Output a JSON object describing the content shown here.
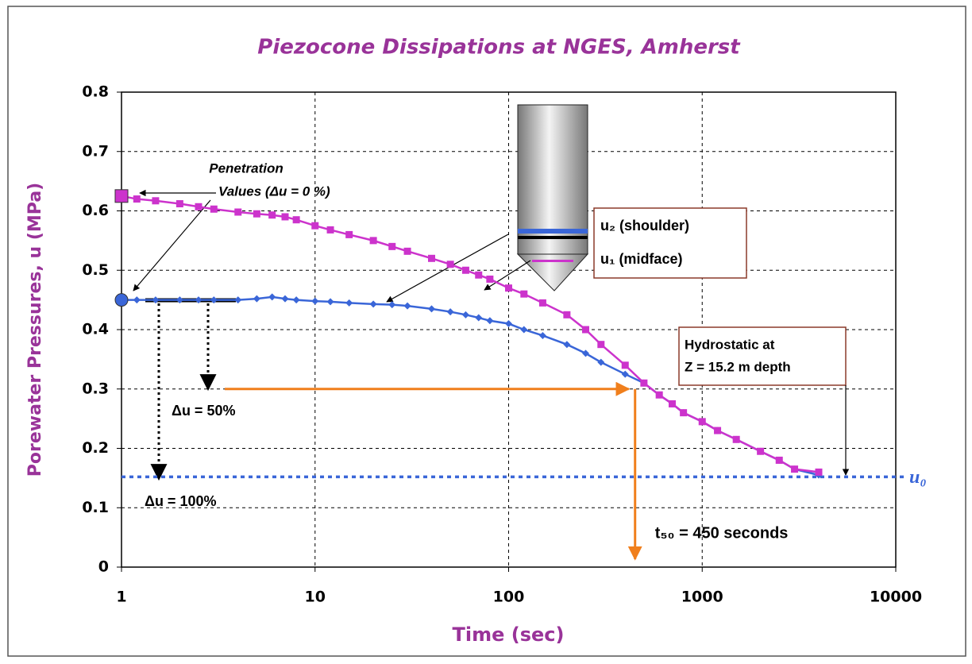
{
  "chart_data": {
    "type": "line",
    "title": "Piezocone Dissipations at NGES, Amherst",
    "x_label": "Time (sec)",
    "y_label": "Porewater Pressures, u  (MPa)",
    "log_x": true,
    "grid": true,
    "xlim": [
      1,
      10000
    ],
    "xticks": [
      1,
      10,
      100,
      1000,
      10000
    ],
    "ylim": [
      0,
      0.8
    ],
    "yticks": [
      0,
      0.1,
      0.2,
      0.3,
      0.4,
      0.5,
      0.6,
      0.7,
      0.8
    ],
    "x": [
      1,
      1.2,
      1.5,
      2,
      2.5,
      3,
      4,
      5,
      6,
      7,
      8,
      10,
      12,
      15,
      20,
      25,
      30,
      40,
      50,
      60,
      70,
      80,
      100,
      120,
      150,
      200,
      250,
      300,
      400,
      500,
      600,
      700,
      800,
      1000,
      1200,
      1500,
      2000,
      2500,
      3000,
      4000
    ],
    "series": [
      {
        "name": "u₂ (shoulder)",
        "color": "#3a66d8",
        "marker": "diamond",
        "values": [
          0.45,
          0.45,
          0.45,
          0.45,
          0.45,
          0.45,
          0.45,
          0.452,
          0.455,
          0.452,
          0.45,
          0.448,
          0.447,
          0.445,
          0.443,
          0.442,
          0.44,
          0.435,
          0.43,
          0.425,
          0.42,
          0.415,
          0.41,
          0.4,
          0.39,
          0.375,
          0.36,
          0.345,
          0.325,
          0.31,
          0.29,
          0.275,
          0.26,
          0.245,
          0.23,
          0.215,
          0.195,
          0.18,
          0.165,
          0.155
        ]
      },
      {
        "name": "u₁ (midface)",
        "color": "#cc33cc",
        "marker": "square",
        "values": [
          0.625,
          0.62,
          0.617,
          0.612,
          0.607,
          0.603,
          0.598,
          0.595,
          0.593,
          0.59,
          0.585,
          0.575,
          0.568,
          0.56,
          0.55,
          0.54,
          0.532,
          0.52,
          0.51,
          0.5,
          0.492,
          0.485,
          0.47,
          0.46,
          0.445,
          0.425,
          0.4,
          0.375,
          0.34,
          0.31,
          0.29,
          0.275,
          0.26,
          0.245,
          0.23,
          0.215,
          0.195,
          0.18,
          0.165,
          0.16
        ]
      }
    ],
    "hydrostatic": {
      "value": 0.152,
      "label": "u₀",
      "note": [
        "Hydrostatic at",
        "Z = 15.2 m depth"
      ]
    },
    "t50": {
      "x": 450,
      "y": 0.3,
      "label": "t₅₀ = 450 seconds"
    },
    "annotations": {
      "penetration": [
        "Penetration",
        "Values  (Δu = 0 %)"
      ],
      "du50": "Δu = 50%",
      "du100": "Δu = 100%"
    }
  }
}
